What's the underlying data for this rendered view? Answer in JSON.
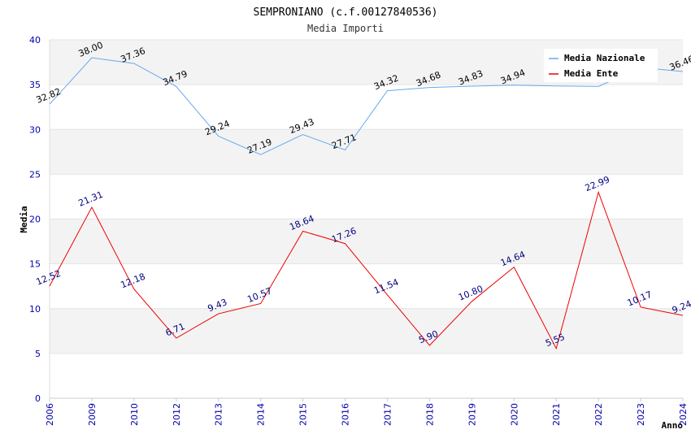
{
  "chart_data": {
    "type": "line",
    "title": "SEMPRONIANO (c.f.00127840536)",
    "subtitle": "Media Importi",
    "xlabel": "Anno",
    "ylabel": "Media",
    "ylim": [
      0,
      40
    ],
    "yticks": [
      0,
      5,
      10,
      15,
      20,
      25,
      30,
      35,
      40
    ],
    "categories": [
      "2006",
      "2009",
      "2010",
      "2012",
      "2013",
      "2014",
      "2015",
      "2016",
      "2017",
      "2018",
      "2019",
      "2020",
      "2021",
      "2022",
      "2023",
      "2024"
    ],
    "series": [
      {
        "name": "Media Nazionale",
        "color": "#66aaee",
        "values": [
          32.82,
          38.0,
          37.36,
          34.79,
          29.24,
          27.19,
          29.43,
          27.71,
          34.32,
          34.68,
          34.83,
          34.94,
          34.85,
          34.8,
          36.9,
          36.46
        ],
        "labels": [
          "32.82",
          "38.00",
          "37.36",
          "34.79",
          "29.24",
          "27.19",
          "29.43",
          "27.71",
          "34.32",
          "34.68",
          "34.83",
          "34.94",
          "",
          "",
          "",
          "36.46"
        ]
      },
      {
        "name": "Media Ente",
        "color": "#ee0000",
        "values": [
          12.52,
          21.31,
          12.18,
          6.71,
          9.43,
          10.57,
          18.64,
          17.26,
          11.54,
          5.9,
          10.8,
          14.64,
          5.55,
          22.99,
          10.17,
          9.24
        ],
        "labels": [
          "12.52",
          "21.31",
          "12.18",
          "6.71",
          "9.43",
          "10.57",
          "18.64",
          "17.26",
          "11.54",
          "5.90",
          "10.80",
          "14.64",
          "5.55",
          "22.99",
          "10.17",
          "9.24"
        ]
      }
    ],
    "legend_position": "top-right",
    "grid": true
  }
}
